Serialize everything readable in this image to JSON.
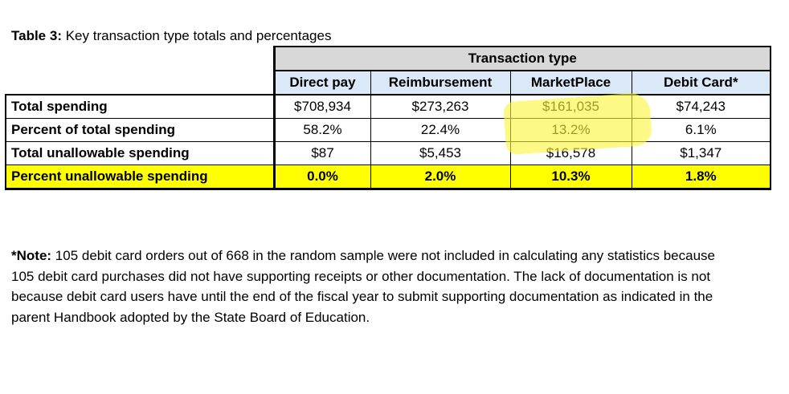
{
  "caption": {
    "lead": "Table 3:",
    "text": " Key transaction type totals and percentages"
  },
  "table": {
    "group_header": "Transaction type",
    "columns": [
      "Direct pay",
      "Reimbursement",
      "MarketPlace",
      "Debit Card*"
    ],
    "rows": [
      {
        "label": "Total spending",
        "values": [
          "$708,934",
          "$273,263",
          "$161,035",
          "$74,243"
        ]
      },
      {
        "label": "Percent of total spending",
        "values": [
          "58.2%",
          "22.4%",
          "13.2%",
          "6.1%"
        ]
      },
      {
        "label": "Total unallowable spending",
        "values": [
          "$87",
          "$5,453",
          "$16,578",
          "$1,347"
        ]
      },
      {
        "label": "Percent unallowable spending",
        "values": [
          "0.0%",
          "2.0%",
          "10.3%",
          "1.8%"
        ]
      }
    ],
    "highlight_row_color": "#ffff00",
    "header_fill": "#dbe8f7",
    "group_fill": "#d8d8d8"
  },
  "annotation": {
    "type": "yellow-highlighter-mark",
    "color": "#fcf63c"
  },
  "note": {
    "lead": "*Note:",
    "lines": [
      " 105 debit card orders out of 668 in the random sample were not included in calculating any statistics because",
      "105 debit card purchases did not have supporting receipts or other documentation. The lack of documentation is not",
      "because debit card users have until the end of the fiscal year to submit supporting documentation as indicated in the",
      "parent Handbook adopted by the State Board of Education."
    ]
  }
}
